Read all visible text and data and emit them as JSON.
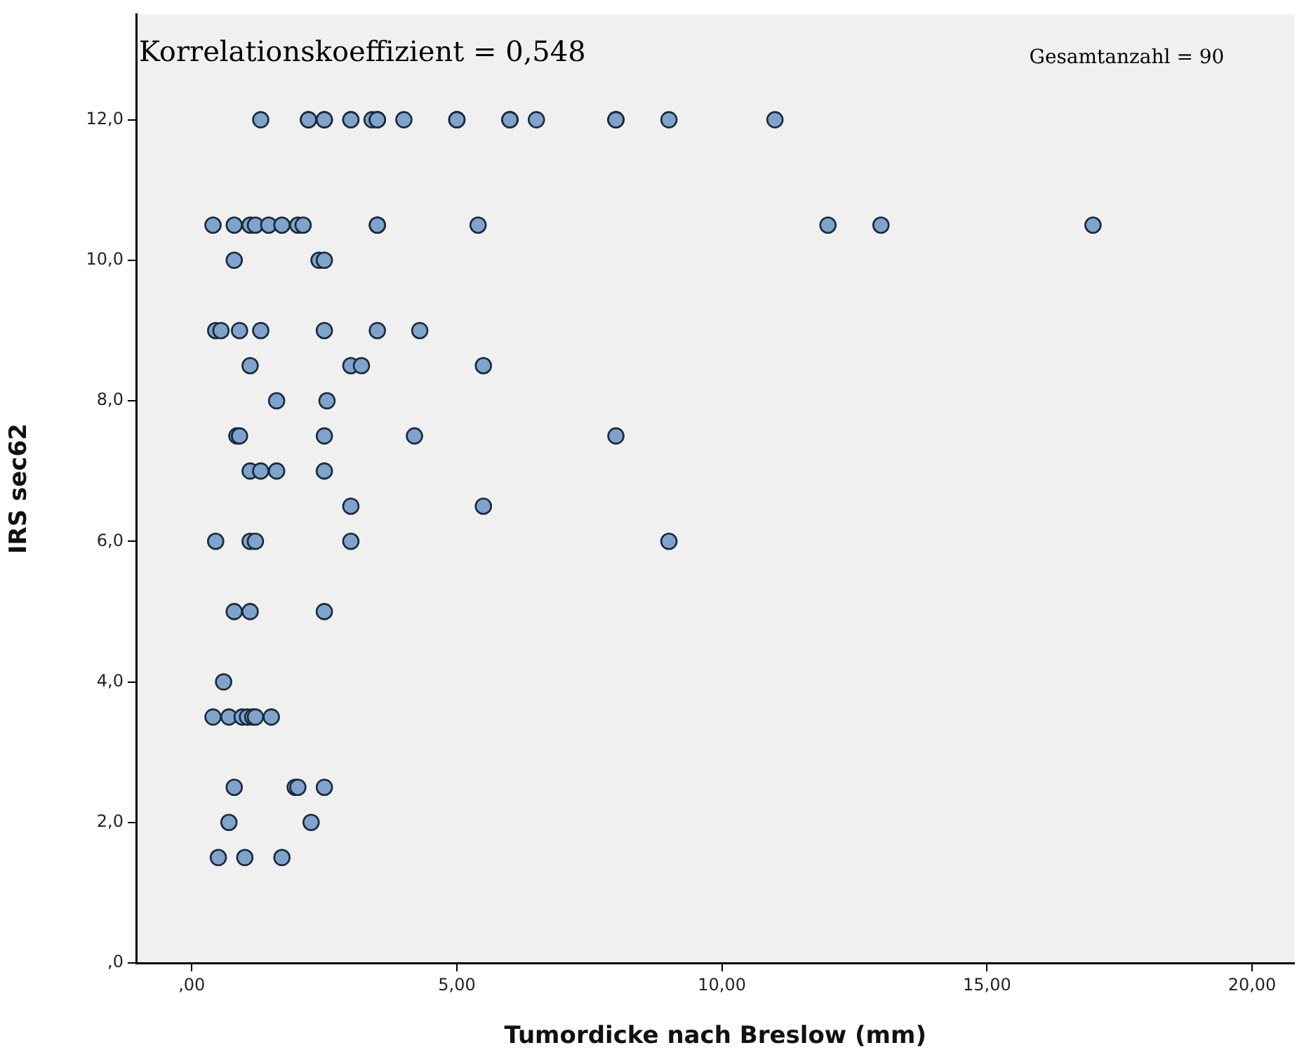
{
  "chart_data": {
    "type": "scatter",
    "xlabel": "Tumordicke nach Breslow (mm)",
    "ylabel": "IRS sec62",
    "annotations": [
      "Korrelationskoeffizient = 0,548",
      "Gesamtanzahl = 90"
    ],
    "xlim": [
      -1.05,
      20.8
    ],
    "ylim": [
      0,
      13.5
    ],
    "xticks": [
      {
        "value": 0,
        "label": ",00"
      },
      {
        "value": 5,
        "label": "5,00"
      },
      {
        "value": 10,
        "label": "10,00"
      },
      {
        "value": 15,
        "label": "15,00"
      },
      {
        "value": 20,
        "label": "20,00"
      }
    ],
    "yticks": [
      {
        "value": 0,
        "label": ",0"
      },
      {
        "value": 2,
        "label": "2,0"
      },
      {
        "value": 4,
        "label": "4,0"
      },
      {
        "value": 6,
        "label": "6,0"
      },
      {
        "value": 8,
        "label": "8,0"
      },
      {
        "value": 10,
        "label": "10,0"
      },
      {
        "value": 12,
        "label": "12,0"
      }
    ],
    "grid": false,
    "legend": false,
    "marker": "circle",
    "series": [
      {
        "color": "#7fa3cc",
        "x": [
          1.3,
          2.2,
          2.2,
          2.5,
          2.5,
          3.0,
          3.0,
          3.4,
          3.5,
          3.5,
          3.5,
          4.0,
          5.0,
          5.0,
          5.0,
          6.0,
          6.0,
          6.0,
          6.5,
          8.0,
          8.0,
          8.0,
          9.0,
          11.0,
          0.4,
          0.8,
          1.1,
          1.2,
          1.45,
          1.7,
          2.0,
          2.1,
          3.5,
          3.5,
          5.4,
          12.0,
          13.0,
          17.0,
          0.8,
          2.4,
          2.5,
          0.45,
          0.55,
          0.9,
          1.3,
          2.5,
          3.5,
          4.3,
          1.1,
          3.0,
          3.2,
          5.5,
          1.6,
          2.55,
          0.85,
          0.9,
          2.5,
          4.2,
          8.0,
          1.1,
          1.3,
          1.6,
          2.5,
          3.0,
          5.5,
          0.45,
          1.1,
          1.2,
          3.0,
          9.0,
          0.8,
          1.1,
          2.5,
          0.6,
          0.4,
          0.7,
          0.95,
          1.05,
          1.15,
          1.2,
          1.5,
          0.8,
          1.95,
          2.0,
          2.5,
          0.7,
          2.25,
          0.5,
          1.0,
          1.7
        ],
        "values": [
          12,
          12,
          12,
          12,
          12,
          12,
          12,
          12,
          12,
          12,
          12,
          12,
          12,
          12,
          12,
          12,
          12,
          12,
          12,
          12,
          12,
          12,
          12,
          12,
          10.5,
          10.5,
          10.5,
          10.5,
          10.5,
          10.5,
          10.5,
          10.5,
          10.5,
          10.5,
          10.5,
          10.5,
          10.5,
          10.5,
          10,
          10,
          10,
          9,
          9,
          9,
          9,
          9,
          9,
          9,
          8.5,
          8.5,
          8.5,
          8.5,
          8,
          8,
          7.5,
          7.5,
          7.5,
          7.5,
          7.5,
          7,
          7,
          7,
          7,
          6.5,
          6.5,
          6,
          6,
          6,
          6,
          6,
          5,
          5,
          5,
          4,
          3.5,
          3.5,
          3.5,
          3.5,
          3.5,
          3.5,
          3.5,
          2.5,
          2.5,
          2.5,
          2.5,
          2,
          2,
          1.5,
          1.5,
          1.5
        ]
      }
    ]
  }
}
